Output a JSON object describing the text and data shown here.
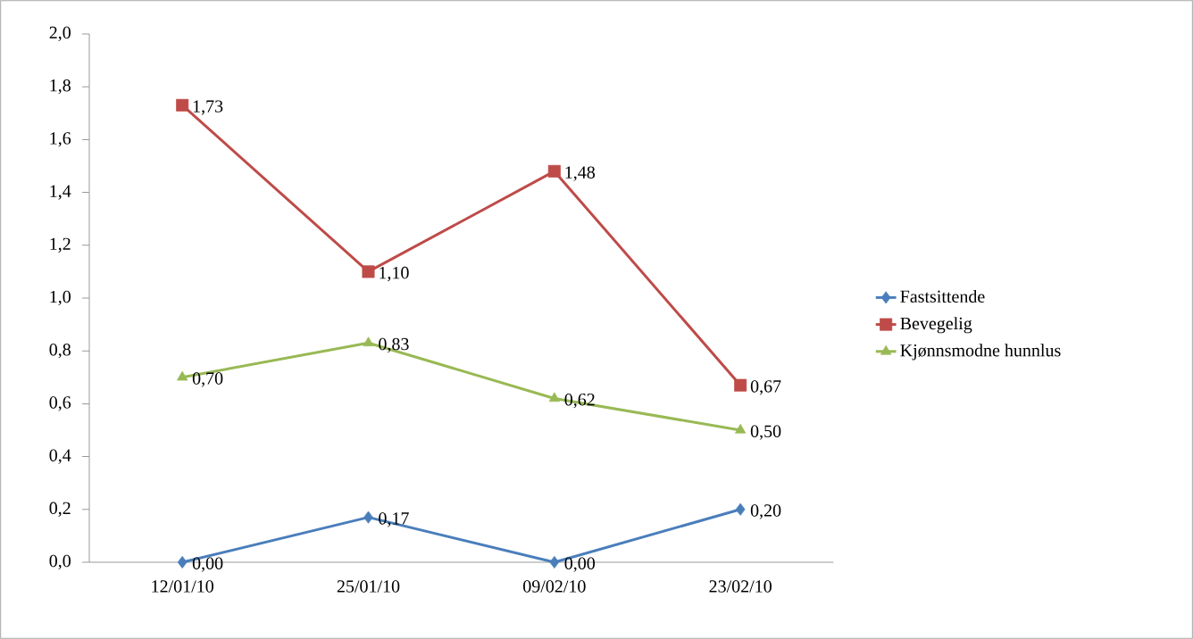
{
  "chart_data": {
    "type": "line",
    "categories": [
      "12/01/10",
      "25/01/10",
      "09/02/10",
      "23/02/10"
    ],
    "series": [
      {
        "name": "Fastsittende",
        "color": "#4a7ebb",
        "marker": "diamond",
        "values": [
          0.0,
          0.17,
          0.0,
          0.2
        ],
        "value_labels": [
          "0,00",
          "0,17",
          "0,00",
          "0,20"
        ]
      },
      {
        "name": "Bevegelig",
        "color": "#be4b48",
        "marker": "square",
        "values": [
          1.73,
          1.1,
          1.48,
          0.67
        ],
        "value_labels": [
          "1,73",
          "1,10",
          "1,48",
          "0,67"
        ]
      },
      {
        "name": "Kjønnsmodne hunnlus",
        "color": "#98b954",
        "marker": "triangle",
        "values": [
          0.7,
          0.83,
          0.62,
          0.5
        ],
        "value_labels": [
          "0,70",
          "0,83",
          "0,62",
          "0,50"
        ]
      }
    ],
    "ylim": [
      0,
      2
    ],
    "yticks": [
      {
        "value": 0,
        "label": "0,0"
      },
      {
        "value": 0.2,
        "label": "0,2"
      },
      {
        "value": 0.4,
        "label": "0,4"
      },
      {
        "value": 0.6,
        "label": "0,6"
      },
      {
        "value": 0.8,
        "label": "0,8"
      },
      {
        "value": 1.0,
        "label": "1,0"
      },
      {
        "value": 1.2,
        "label": "1,2"
      },
      {
        "value": 1.4,
        "label": "1,4"
      },
      {
        "value": 1.6,
        "label": "1,6"
      },
      {
        "value": 1.8,
        "label": "1,8"
      },
      {
        "value": 2.0,
        "label": "2,0"
      }
    ],
    "grid": false,
    "legend": "right",
    "line_style": "solid"
  }
}
